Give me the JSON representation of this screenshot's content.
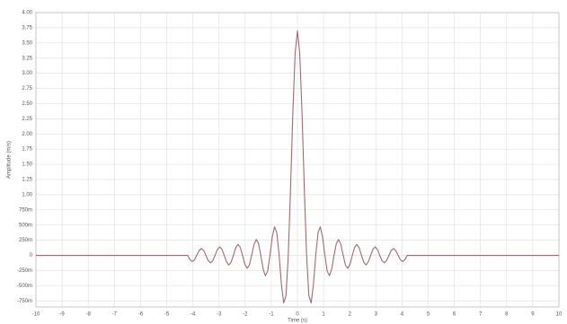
{
  "chart_data": {
    "type": "line",
    "y_label": "Amplitude (m/s)",
    "x_label": "Time (s)",
    "x": [
      -10,
      -4.2,
      -4.1125,
      -4.025,
      -3.9375,
      -3.85,
      -3.7625,
      -3.675,
      -3.5875,
      -3.5,
      -3.4125,
      -3.325,
      -3.2375,
      -3.15,
      -3.0625,
      -2.975,
      -2.8875,
      -2.8,
      -2.7125,
      -2.625,
      -2.5375,
      -2.45,
      -2.3625,
      -2.275,
      -2.1875,
      -2.1,
      -2.0125,
      -1.925,
      -1.8375,
      -1.75,
      -1.6625,
      -1.575,
      -1.4875,
      -1.4,
      -1.3125,
      -1.225,
      -1.1375,
      -1.05,
      -0.9625,
      -0.875,
      -0.7875,
      -0.7,
      -0.6125,
      -0.525,
      -0.4375,
      -0.35,
      -0.2625,
      -0.175,
      -0.0875,
      0,
      0.0875,
      0.175,
      0.2625,
      0.35,
      0.4375,
      0.525,
      0.6125,
      0.7,
      0.7875,
      0.875,
      0.9625,
      1.05,
      1.1375,
      1.225,
      1.3125,
      1.4,
      1.4875,
      1.575,
      1.6625,
      1.75,
      1.8375,
      1.925,
      2.0125,
      2.1,
      2.1875,
      2.275,
      2.3625,
      2.45,
      2.5375,
      2.625,
      2.7125,
      2.8,
      2.8875,
      2.975,
      3.0625,
      3.15,
      3.2375,
      3.325,
      3.4125,
      3.5,
      3.5875,
      3.675,
      3.7625,
      3.85,
      3.9375,
      4.025,
      4.1125,
      4.2,
      10
    ],
    "series": [
      {
        "color": "#a06a72",
        "values": [
          0,
          0,
          -0.071,
          -0.102,
          -0.074,
          0,
          0.077,
          0.112,
          0.081,
          0,
          -0.085,
          -0.124,
          -0.09,
          0,
          0.095,
          0.139,
          0.101,
          0,
          -0.107,
          -0.157,
          -0.115,
          0,
          0.123,
          0.181,
          0.133,
          0,
          -0.145,
          -0.214,
          -0.159,
          0,
          0.175,
          0.262,
          0.196,
          0,
          -0.222,
          -0.337,
          -0.256,
          0,
          0.303,
          0.471,
          0.37,
          0,
          -0.476,
          -0.785,
          -0.666,
          0,
          1.11,
          2.356,
          3.331,
          3.7,
          3.331,
          2.356,
          1.11,
          0,
          -0.666,
          -0.785,
          -0.476,
          0,
          0.37,
          0.471,
          0.303,
          0,
          -0.256,
          -0.337,
          -0.222,
          0,
          0.196,
          0.262,
          0.175,
          0,
          -0.159,
          -0.214,
          -0.145,
          0,
          0.133,
          0.181,
          0.123,
          0,
          -0.115,
          -0.157,
          -0.107,
          0,
          0.101,
          0.139,
          0.095,
          0,
          -0.09,
          -0.124,
          -0.085,
          0,
          0.081,
          0.112,
          0.077,
          0,
          -0.074,
          -0.102,
          -0.071,
          0,
          0
        ]
      }
    ],
    "xlim": [
      -10,
      10
    ],
    "xticks": [
      -10,
      -9,
      -8,
      -7,
      -6,
      -5,
      -4,
      -3,
      -2,
      -1,
      0,
      1,
      2,
      3,
      4,
      5,
      6,
      7,
      8,
      9,
      10
    ],
    "ylim": [
      -0.85,
      4
    ],
    "yticks": [
      {
        "value": -0.75,
        "label": "-750m"
      },
      {
        "value": -0.5,
        "label": "-500m"
      },
      {
        "value": -0.25,
        "label": "-250m"
      },
      0,
      {
        "value": 0.25,
        "label": "250m"
      },
      {
        "value": 0.5,
        "label": "500m"
      },
      {
        "value": 0.75,
        "label": "750m"
      },
      {
        "value": 1,
        "label": "1.00"
      },
      1.25,
      {
        "value": 1.5,
        "label": "1.50"
      },
      1.75,
      {
        "value": 2,
        "label": "2.00"
      },
      2.25,
      {
        "value": 2.5,
        "label": "2.50"
      },
      2.75,
      {
        "value": 3,
        "label": "3.00"
      },
      3.25,
      {
        "value": 3.5,
        "label": "3.50"
      },
      3.75,
      {
        "value": 4,
        "label": "4.00"
      }
    ],
    "grid": true
  }
}
